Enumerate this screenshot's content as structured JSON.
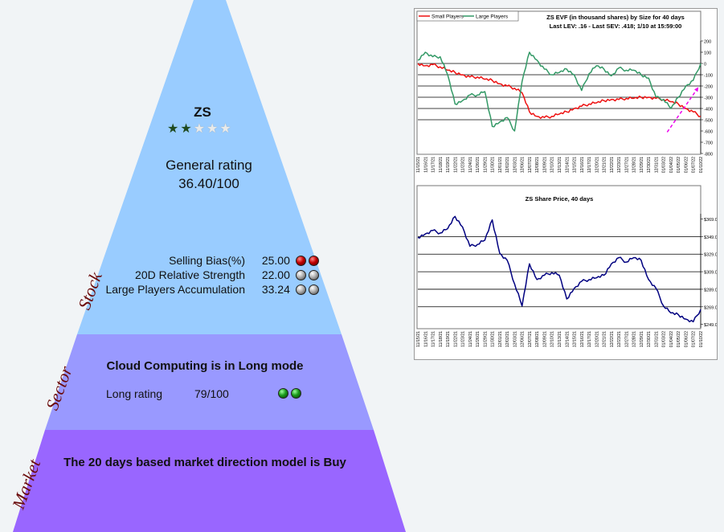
{
  "stock": {
    "ticker": "ZS",
    "stars": {
      "filled": 2,
      "total": 5
    },
    "general_rating_label": "General rating",
    "general_rating_value": "36.40/100",
    "metrics": [
      {
        "label": "Selling Bias(%)",
        "value": "25.00",
        "balls": [
          "red",
          "red"
        ]
      },
      {
        "label": "20D Relative Strength",
        "value": "22.00",
        "balls": [
          "gray",
          "gray"
        ]
      },
      {
        "label": "Large Players Accumulation",
        "value": "33.24",
        "balls": [
          "gray",
          "gray"
        ]
      }
    ]
  },
  "sector": {
    "headline": "Cloud Computing is in Long mode",
    "rating_label": "Long rating",
    "rating_value": "79/100",
    "balls": [
      "green",
      "green"
    ]
  },
  "market": {
    "headline": "The 20 days based market direction model is Buy"
  },
  "side_labels": {
    "stock": "Stock",
    "sector": "Sector",
    "market": "Market"
  },
  "colors": {
    "stock_band": "#99ccff",
    "sector_band": "#9999ff",
    "market_band": "#9966ff",
    "small_players": "#ee1111",
    "large_players": "#339966",
    "price": "#000080",
    "trend_arrow": "#ee00ee"
  },
  "chart_data": [
    {
      "type": "line",
      "title": "ZS EVF (in thousand shares) by Size for 40 days",
      "subtitle": "Last LEV: .16 - Last SEV: .418; 1/10 at 15:59:00",
      "legend": [
        "Small Players",
        "Large Players"
      ],
      "legend_position": "top-left",
      "ylim": [
        -800,
        200
      ],
      "y_ticks": [
        "200",
        "100",
        "0",
        "-100",
        "-200",
        "-300",
        "-400",
        "-500",
        "-600",
        "-700",
        "-800"
      ],
      "x_ticks": [
        "11/15/21",
        "11/16/21",
        "11/17/21",
        "11/18/21",
        "11/19/21",
        "11/22/21",
        "11/23/21",
        "11/24/21",
        "11/26/21",
        "11/29/21",
        "11/30/21",
        "12/01/21",
        "12/02/21",
        "12/03/21",
        "12/06/21",
        "12/07/21",
        "12/08/21",
        "12/09/21",
        "12/10/21",
        "12/13/21",
        "12/14/21",
        "12/15/21",
        "12/16/21",
        "12/17/21",
        "12/20/21",
        "12/21/21",
        "12/22/21",
        "12/23/21",
        "12/27/21",
        "12/28/21",
        "12/29/21",
        "12/30/21",
        "12/31/21",
        "01/03/22",
        "01/04/22",
        "01/05/22",
        "01/06/22",
        "01/07/22",
        "01/10/22"
      ],
      "series": [
        {
          "name": "Small Players",
          "values": [
            0,
            -20,
            -10,
            -30,
            -60,
            -80,
            -100,
            -120,
            -120,
            -140,
            -150,
            -180,
            -200,
            -220,
            -260,
            -430,
            -470,
            -480,
            -470,
            -450,
            -430,
            -400,
            -380,
            -360,
            -350,
            -330,
            -320,
            -320,
            -310,
            -310,
            -300,
            -300,
            -310,
            -320,
            -340,
            -360,
            -400,
            -430,
            -470
          ]
        },
        {
          "name": "Large Players",
          "values": [
            30,
            100,
            60,
            60,
            -100,
            -360,
            -330,
            -280,
            -280,
            -250,
            -560,
            -520,
            -480,
            -600,
            -160,
            100,
            30,
            -50,
            -100,
            -80,
            -50,
            -100,
            -240,
            -90,
            -20,
            -50,
            -110,
            -40,
            -60,
            -60,
            -100,
            -130,
            -300,
            -320,
            -400,
            -300,
            -200,
            -150,
            0
          ]
        }
      ],
      "trend_arrow": {
        "from": [
          -610,
          -510
        ],
        "to": [
          -210,
          -230
        ]
      }
    },
    {
      "type": "line",
      "title": "ZS Share Price, 40 days",
      "ylim": [
        245,
        375
      ],
      "y_ticks": [
        "$369.0",
        "$349.0",
        "$329.0",
        "$309.0",
        "$289.0",
        "$269.0",
        "$249.0"
      ],
      "x_ticks": [
        "11/15/21",
        "11/16/21",
        "11/17/21",
        "11/18/21",
        "11/19/21",
        "11/22/21",
        "11/23/21",
        "11/24/21",
        "11/26/21",
        "11/29/21",
        "11/30/21",
        "12/01/21",
        "12/02/21",
        "12/03/21",
        "12/06/21",
        "12/07/21",
        "12/08/21",
        "12/09/21",
        "12/10/21",
        "12/13/21",
        "12/14/21",
        "12/15/21",
        "12/16/21",
        "12/17/21",
        "12/20/21",
        "12/21/21",
        "12/22/21",
        "12/23/21",
        "12/27/21",
        "12/28/21",
        "12/29/21",
        "12/30/21",
        "12/31/21",
        "01/03/22",
        "01/04/22",
        "01/05/22",
        "01/06/22",
        "01/07/22",
        "01/10/22"
      ],
      "series": [
        {
          "name": "Share Price",
          "values": [
            348,
            352,
            356,
            353,
            358,
            372,
            360,
            338,
            340,
            345,
            368,
            330,
            322,
            295,
            270,
            318,
            300,
            305,
            308,
            305,
            278,
            290,
            298,
            300,
            302,
            305,
            318,
            325,
            320,
            325,
            322,
            300,
            290,
            270,
            262,
            260,
            255,
            252,
            266
          ]
        }
      ]
    }
  ]
}
